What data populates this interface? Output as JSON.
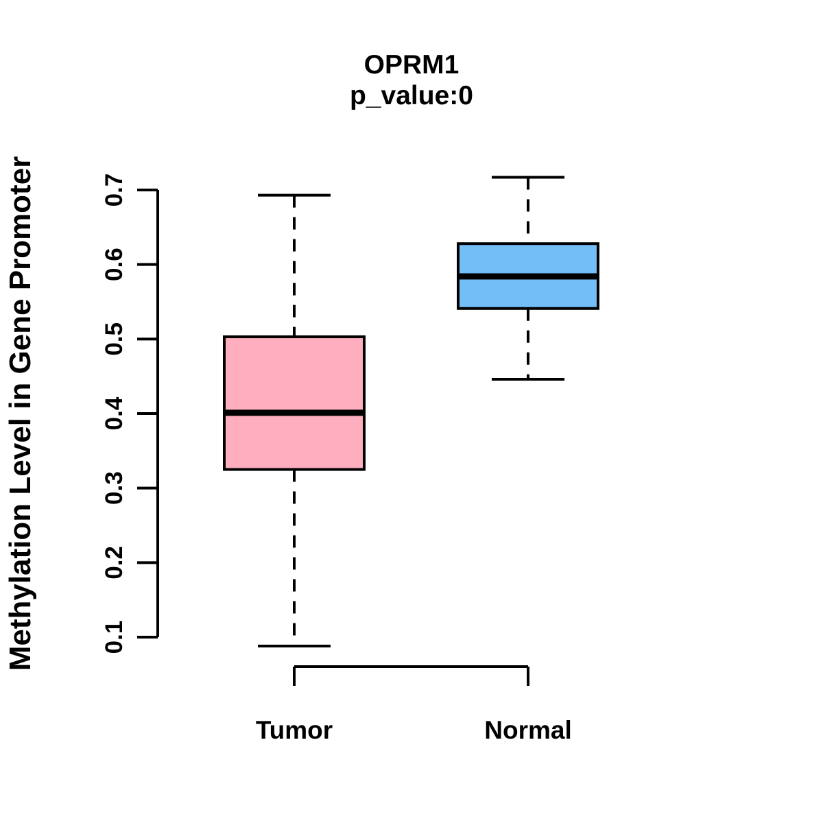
{
  "chart_data": {
    "type": "boxplot",
    "title": "OPRM1",
    "subtitle": "p_value:0",
    "xlabel": "",
    "ylabel": "Methylation Level in Gene Promoter",
    "categories": [
      "Tumor",
      "Normal"
    ],
    "yticks": [
      "0.1",
      "0.2",
      "0.3",
      "0.4",
      "0.5",
      "0.6",
      "0.7"
    ],
    "ylim": [
      0.1,
      0.7
    ],
    "grid": false,
    "legend_position": "none",
    "whisker_style": "dashed",
    "series": [
      {
        "name": "Tumor",
        "lower_whisker": 0.088,
        "q1": 0.325,
        "median": 0.401,
        "q3": 0.503,
        "upper_whisker": 0.693,
        "fill": "#FFAEC0"
      },
      {
        "name": "Normal",
        "lower_whisker": 0.446,
        "q1": 0.541,
        "median": 0.584,
        "q3": 0.628,
        "upper_whisker": 0.717,
        "fill": "#74BEF8"
      }
    ]
  },
  "colors": {
    "foreground": "#000000",
    "background": "#FFFFFF",
    "tumor_fill": "#FFAEC0",
    "normal_fill": "#74BEF8"
  }
}
